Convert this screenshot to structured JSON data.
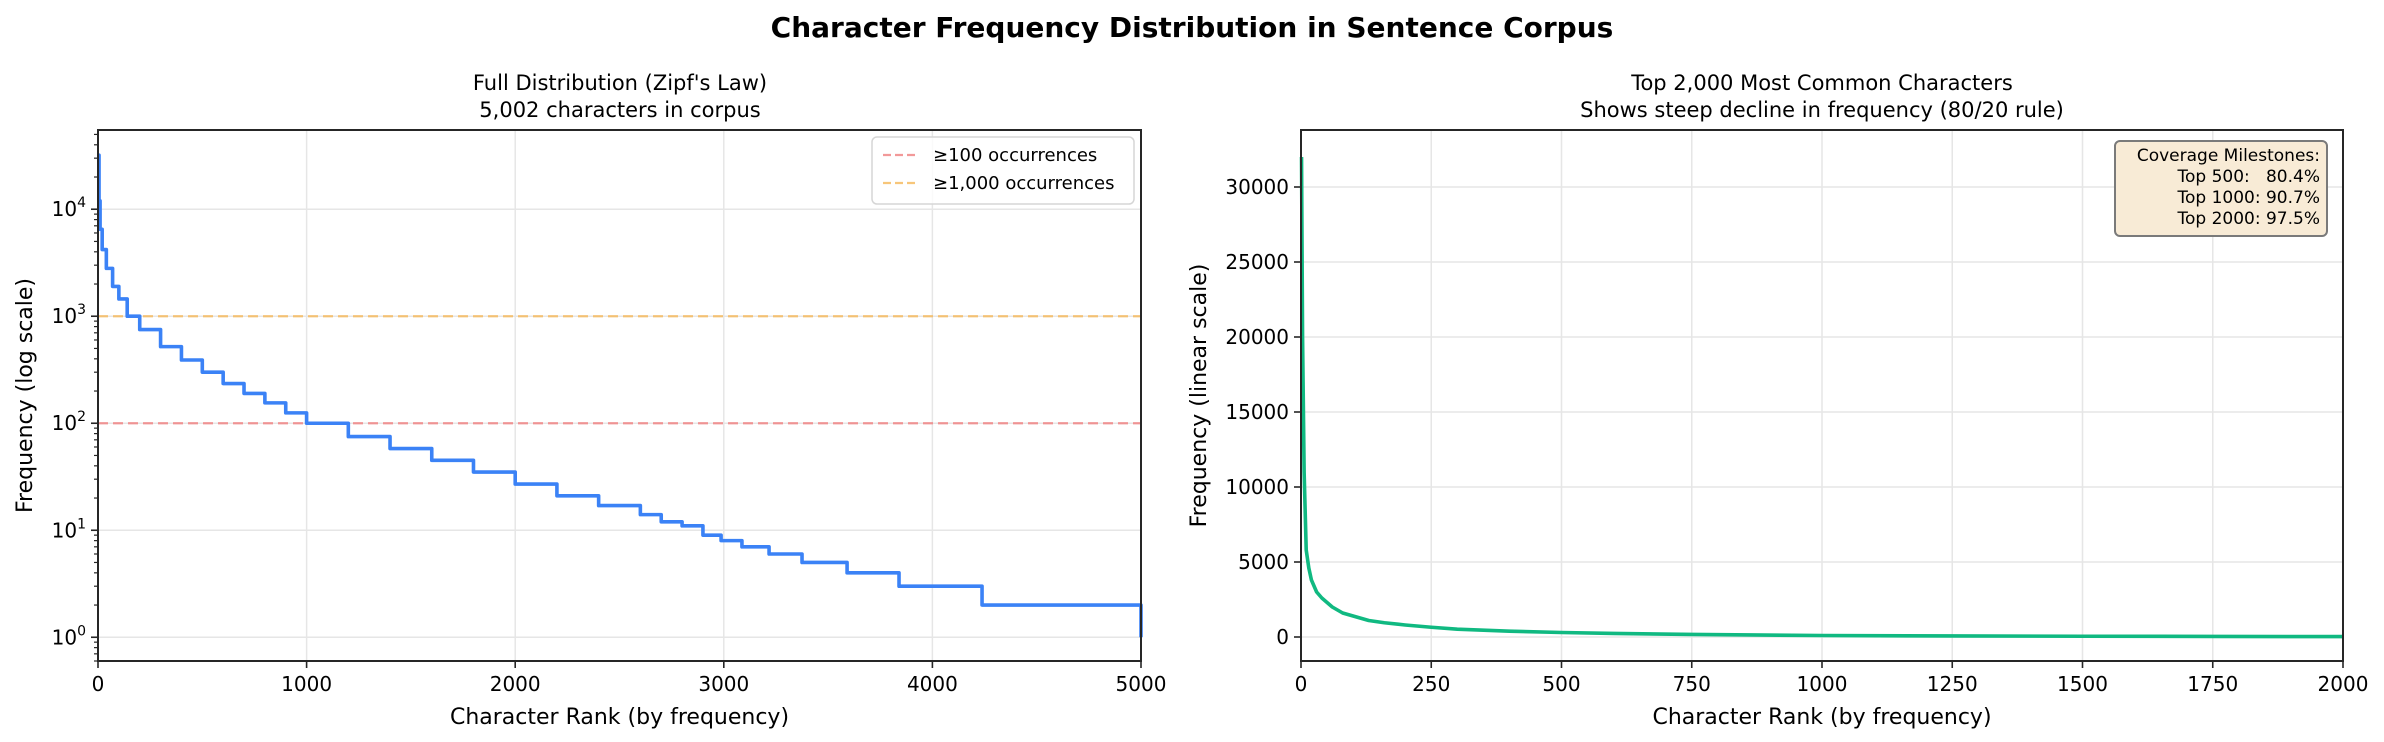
{
  "figure": {
    "title": "Character Frequency Distribution in Sentence Corpus"
  },
  "chart_data": [
    {
      "type": "line",
      "title": "Full Distribution (Zipf's Law)",
      "subtitle": "5,002 characters in corpus",
      "xlabel": "Character Rank (by frequency)",
      "ylabel": "Frequency (log scale)",
      "xscale": "linear",
      "yscale": "log",
      "xlim": [
        0,
        5000
      ],
      "ylim": [
        0.6,
        55000
      ],
      "xticks": [
        0,
        1000,
        2000,
        3000,
        4000,
        5000
      ],
      "xtick_labels": [
        "0",
        "1000",
        "2000",
        "3000",
        "4000",
        "5000"
      ],
      "yticks": [
        1,
        10,
        100,
        1000,
        10000
      ],
      "ytick_labels": [
        {
          "base": "10",
          "exp": "0"
        },
        {
          "base": "10",
          "exp": "1"
        },
        {
          "base": "10",
          "exp": "2"
        },
        {
          "base": "10",
          "exp": "3"
        },
        {
          "base": "10",
          "exp": "4"
        }
      ],
      "grid": true,
      "color": "#3b82f6",
      "series": [
        {
          "name": "frequency",
          "step": true,
          "x": [
            1,
            5,
            10,
            20,
            40,
            70,
            100,
            140,
            200,
            300,
            400,
            500,
            600,
            700,
            800,
            900,
            1000,
            1200,
            1400,
            1600,
            1800,
            2000,
            2200,
            2400,
            2600,
            2700,
            2800,
            2900,
            2987,
            3087,
            3217,
            3375,
            3591,
            3840,
            4238,
            5002
          ],
          "y": [
            32000,
            12000,
            6500,
            4200,
            2800,
            1900,
            1450,
            1000,
            750,
            520,
            390,
            300,
            235,
            190,
            155,
            125,
            100,
            75,
            58,
            45,
            35,
            27,
            21,
            17,
            14,
            12,
            11,
            9,
            8,
            7,
            6,
            5,
            4,
            3,
            2,
            1
          ]
        }
      ],
      "hlines": [
        {
          "y": 100,
          "label": "≥100 occurrences",
          "color": "#f08080",
          "style": "dashed"
        },
        {
          "y": 1000,
          "label": "≥1,000 occurrences",
          "color": "#f6b85a",
          "style": "dashed"
        }
      ],
      "legend": {
        "position": "upper right",
        "entries": [
          "≥100 occurrences",
          "≥1,000 occurrences"
        ]
      }
    },
    {
      "type": "line",
      "title": "Top 2,000 Most Common Characters",
      "subtitle": "Shows steep decline in frequency (80/20 rule)",
      "xlabel": "Character Rank (by frequency)",
      "ylabel": "Frequency (linear scale)",
      "xscale": "linear",
      "yscale": "linear",
      "xlim": [
        0,
        2000
      ],
      "ylim": [
        -1600,
        33800
      ],
      "xticks": [
        0,
        250,
        500,
        750,
        1000,
        1250,
        1500,
        1750,
        2000
      ],
      "xtick_labels": [
        "0",
        "250",
        "500",
        "750",
        "1000",
        "1250",
        "1500",
        "1750",
        "2000"
      ],
      "yticks": [
        0,
        5000,
        10000,
        15000,
        20000,
        25000,
        30000
      ],
      "ytick_labels": [
        "0",
        "5000",
        "10000",
        "15000",
        "20000",
        "25000",
        "30000"
      ],
      "grid": true,
      "color": "#10b981",
      "series": [
        {
          "name": "frequency",
          "x": [
            1,
            3,
            6,
            10,
            15,
            20,
            30,
            40,
            60,
            80,
            100,
            130,
            160,
            200,
            250,
            300,
            400,
            500,
            600,
            750,
            1000,
            1250,
            1500,
            1750,
            2000
          ],
          "y": [
            32000,
            20000,
            11000,
            5800,
            4600,
            3800,
            3000,
            2600,
            2000,
            1600,
            1400,
            1100,
            950,
            800,
            650,
            520,
            390,
            300,
            235,
            170,
            100,
            70,
            50,
            38,
            27
          ]
        }
      ],
      "annotation": {
        "title": "Coverage Milestones:",
        "lines": [
          "Top 500:   80.4%",
          "Top 1000: 90.7%",
          "Top 2000: 97.5%"
        ],
        "milestones": [
          {
            "label": "Top 500",
            "value": "80.4%"
          },
          {
            "label": "Top 1000",
            "value": "90.7%"
          },
          {
            "label": "Top 2000",
            "value": "97.5%"
          }
        ],
        "position": "upper right",
        "background": "#f8ebd6",
        "border": "#7a7a7a"
      }
    }
  ]
}
